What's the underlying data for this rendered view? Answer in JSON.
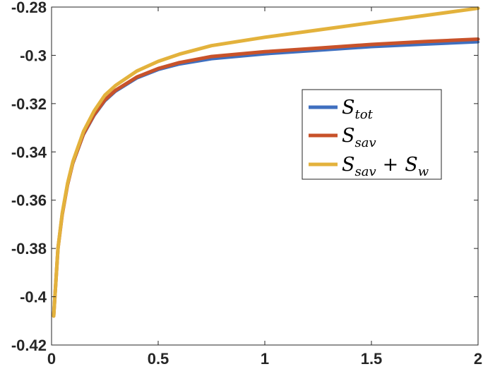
{
  "chart_data": {
    "type": "line",
    "title": "",
    "xlabel": "",
    "ylabel": "",
    "xlim": [
      0,
      2
    ],
    "ylim": [
      -0.42,
      -0.28
    ],
    "xticks": [
      0,
      0.5,
      1,
      1.5,
      2
    ],
    "xtick_labels": [
      "0",
      "0.5",
      "1",
      "1.5",
      "2"
    ],
    "yticks": [
      -0.42,
      -0.4,
      -0.38,
      -0.36,
      -0.34,
      -0.32,
      -0.3,
      -0.28
    ],
    "ytick_labels": [
      "-0.42",
      "-0.4",
      "-0.38",
      "-0.36",
      "-0.34",
      "-0.32",
      "-0.3",
      "-0.28"
    ],
    "grid": false,
    "legend_position": "center-right",
    "series": [
      {
        "legend_base": "S",
        "legend_sub": "tot",
        "color": "#3f6fbf",
        "x": [
          0.01,
          0.03,
          0.05,
          0.075,
          0.1,
          0.15,
          0.2,
          0.25,
          0.3,
          0.4,
          0.5,
          0.6,
          0.75,
          1.0,
          1.25,
          1.5,
          1.75,
          2.0
        ],
        "y": [
          -0.408,
          -0.38,
          -0.366,
          -0.354,
          -0.345,
          -0.333,
          -0.325,
          -0.319,
          -0.315,
          -0.3095,
          -0.306,
          -0.3037,
          -0.3015,
          -0.2995,
          -0.298,
          -0.2965,
          -0.2955,
          -0.2945
        ]
      },
      {
        "legend_base": "S",
        "legend_sub": "sav",
        "color": "#c8522a",
        "x": [
          0.01,
          0.03,
          0.05,
          0.075,
          0.1,
          0.15,
          0.2,
          0.25,
          0.3,
          0.4,
          0.5,
          0.6,
          0.75,
          1.0,
          1.25,
          1.5,
          1.75,
          2.0
        ],
        "y": [
          -0.408,
          -0.38,
          -0.366,
          -0.3535,
          -0.3445,
          -0.3325,
          -0.3245,
          -0.3185,
          -0.3145,
          -0.309,
          -0.3055,
          -0.303,
          -0.3005,
          -0.2985,
          -0.297,
          -0.2955,
          -0.2943,
          -0.2933
        ]
      },
      {
        "legend_base": "S",
        "legend_sub": "sav",
        "legend_op": "+",
        "legend_base2": "S",
        "legend_sub2": "w",
        "color": "#e3b23c",
        "x": [
          0.01,
          0.03,
          0.05,
          0.075,
          0.1,
          0.15,
          0.2,
          0.25,
          0.3,
          0.4,
          0.5,
          0.6,
          0.75,
          1.0,
          1.25,
          1.5,
          1.75,
          2.0
        ],
        "y": [
          -0.408,
          -0.38,
          -0.3655,
          -0.353,
          -0.344,
          -0.3315,
          -0.323,
          -0.3165,
          -0.3125,
          -0.3065,
          -0.3025,
          -0.2995,
          -0.296,
          -0.2925,
          -0.2895,
          -0.2865,
          -0.2835,
          -0.2805
        ]
      }
    ]
  }
}
